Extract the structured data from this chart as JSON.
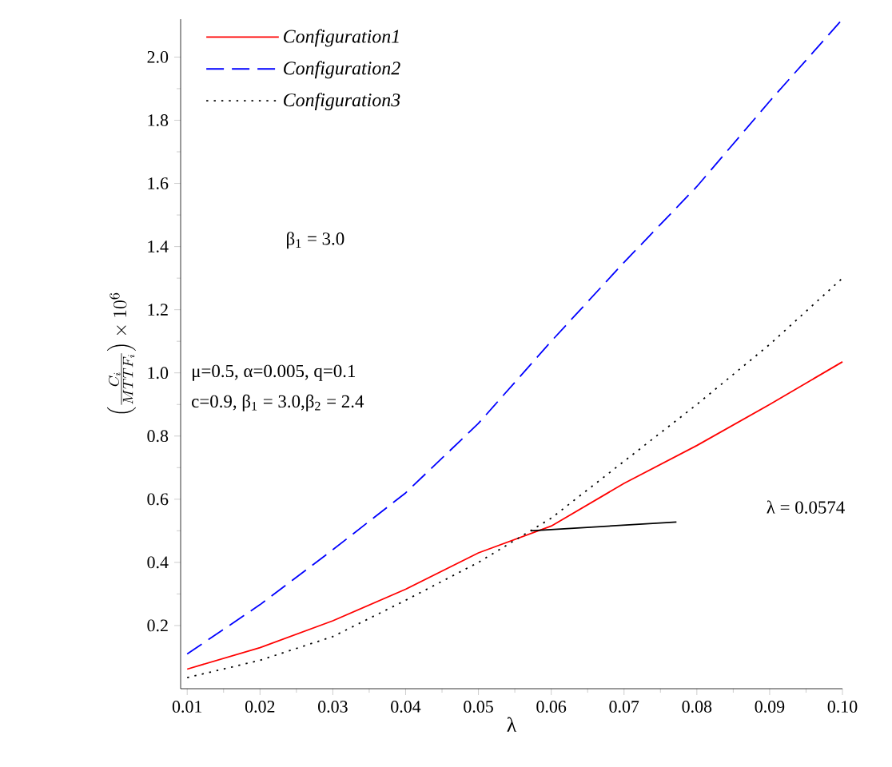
{
  "chart_data": {
    "type": "line",
    "xlabel": "λ",
    "ylabel": "\\left(\\frac{C_i}{MTTF_i}\\right)\\times 10^{6}",
    "x": [
      0.01,
      0.02,
      0.03,
      0.04,
      0.05,
      0.06,
      0.07,
      0.08,
      0.09,
      0.1
    ],
    "series": [
      {
        "name": "Configuration1",
        "color": "#ff0000",
        "line_style": "solid",
        "values": [
          0.062,
          0.13,
          0.215,
          0.315,
          0.43,
          0.515,
          0.65,
          0.77,
          0.9,
          1.035
        ]
      },
      {
        "name": "Configuration2",
        "color": "#0000ff",
        "line_style": "dashed",
        "values": [
          0.11,
          0.266,
          0.44,
          0.62,
          0.84,
          1.1,
          1.35,
          1.59,
          1.86,
          2.12
        ]
      },
      {
        "name": "Configuration3",
        "color": "#000000",
        "line_style": "dotted",
        "values": [
          0.035,
          0.09,
          0.165,
          0.28,
          0.4,
          0.54,
          0.72,
          0.9,
          1.09,
          1.3
        ]
      },
      {
        "color": "#000000",
        "line_style": "solid",
        "x": [
          0.0572,
          0.0772
        ],
        "values": [
          0.5,
          0.528
        ]
      }
    ],
    "xlim": [
      0.0091,
      0.1
    ],
    "ylim": [
      0,
      2.12
    ],
    "xticks": [
      0.01,
      0.02,
      0.03,
      0.04,
      0.05,
      0.06,
      0.07,
      0.08,
      0.09,
      {
        "value": 0.1,
        "label": "0.10"
      }
    ],
    "yticks": [
      0.2,
      0.4,
      0.6,
      0.8,
      {
        "value": 1.0,
        "label": "1.0"
      },
      1.2,
      1.4,
      1.6,
      1.8,
      {
        "value": 2.0,
        "label": "2.0"
      }
    ],
    "legend": "top left",
    "grid": false,
    "annotations": [
      "β$_{1}$ = 3.0",
      "μ=0.5,  α=0.005,  q=0.1",
      "c=0.9, β$_{1}$ = 3.0,β$_{2}$ = 2.4",
      "λ = 0.0574"
    ]
  }
}
